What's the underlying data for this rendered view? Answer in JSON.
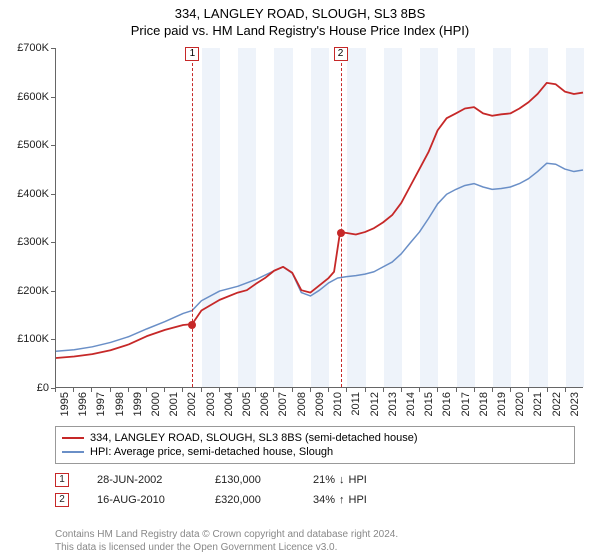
{
  "title_line1": "334, LANGLEY ROAD, SLOUGH, SL3 8BS",
  "title_line2": "Price paid vs. HM Land Registry's House Price Index (HPI)",
  "chart": {
    "type": "line",
    "ylim": [
      0,
      700000
    ],
    "ytick_step": 100000,
    "ytick_labels": [
      "£0",
      "£100K",
      "£200K",
      "£300K",
      "£400K",
      "£500K",
      "£600K",
      "£700K"
    ],
    "x_years": [
      1995,
      1996,
      1997,
      1998,
      1999,
      2000,
      2001,
      2002,
      2003,
      2004,
      2005,
      2006,
      2007,
      2008,
      2009,
      2010,
      2011,
      2012,
      2013,
      2014,
      2015,
      2016,
      2017,
      2018,
      2019,
      2020,
      2021,
      2022,
      2023
    ],
    "background_color": "#ffffff",
    "band_color": "#eef3fa",
    "axis_color": "#666666",
    "markers": [
      {
        "label": "1",
        "year": 2002.49,
        "value": 130000
      },
      {
        "label": "2",
        "year": 2010.63,
        "value": 320000
      }
    ],
    "marker_box_color": "#c62828",
    "series": [
      {
        "name": "334, LANGLEY ROAD, SLOUGH, SL3 8BS (semi-detached house)",
        "color": "#c62828",
        "line_width": 1.8,
        "points": [
          [
            1995,
            60000
          ],
          [
            1996,
            63000
          ],
          [
            1997,
            68000
          ],
          [
            1998,
            76000
          ],
          [
            1999,
            88000
          ],
          [
            2000,
            105000
          ],
          [
            2001,
            118000
          ],
          [
            2002,
            128000
          ],
          [
            2002.49,
            130000
          ],
          [
            2003,
            158000
          ],
          [
            2004,
            180000
          ],
          [
            2005,
            195000
          ],
          [
            2005.5,
            200000
          ],
          [
            2006,
            213000
          ],
          [
            2006.5,
            225000
          ],
          [
            2007,
            240000
          ],
          [
            2007.5,
            248000
          ],
          [
            2008,
            236000
          ],
          [
            2008.5,
            200000
          ],
          [
            2009,
            195000
          ],
          [
            2009.5,
            210000
          ],
          [
            2010,
            225000
          ],
          [
            2010.3,
            238000
          ],
          [
            2010.63,
            320000
          ],
          [
            2011,
            318000
          ],
          [
            2011.5,
            315000
          ],
          [
            2012,
            320000
          ],
          [
            2012.5,
            328000
          ],
          [
            2013,
            340000
          ],
          [
            2013.5,
            355000
          ],
          [
            2014,
            380000
          ],
          [
            2014.5,
            415000
          ],
          [
            2015,
            450000
          ],
          [
            2015.5,
            485000
          ],
          [
            2016,
            530000
          ],
          [
            2016.5,
            555000
          ],
          [
            2017,
            565000
          ],
          [
            2017.5,
            575000
          ],
          [
            2018,
            578000
          ],
          [
            2018.5,
            565000
          ],
          [
            2019,
            560000
          ],
          [
            2019.5,
            563000
          ],
          [
            2020,
            565000
          ],
          [
            2020.5,
            575000
          ],
          [
            2021,
            588000
          ],
          [
            2021.5,
            605000
          ],
          [
            2022,
            628000
          ],
          [
            2022.5,
            625000
          ],
          [
            2023,
            610000
          ],
          [
            2023.5,
            605000
          ],
          [
            2024,
            608000
          ]
        ]
      },
      {
        "name": "HPI: Average price, semi-detached house, Slough",
        "color": "#6a8fc7",
        "line_width": 1.5,
        "points": [
          [
            1995,
            74000
          ],
          [
            1996,
            77000
          ],
          [
            1997,
            83000
          ],
          [
            1998,
            92000
          ],
          [
            1999,
            104000
          ],
          [
            2000,
            120000
          ],
          [
            2001,
            135000
          ],
          [
            2002,
            152000
          ],
          [
            2002.49,
            158000
          ],
          [
            2003,
            178000
          ],
          [
            2004,
            198000
          ],
          [
            2005,
            208000
          ],
          [
            2006,
            222000
          ],
          [
            2007,
            240000
          ],
          [
            2007.5,
            248000
          ],
          [
            2008,
            235000
          ],
          [
            2008.5,
            195000
          ],
          [
            2009,
            188000
          ],
          [
            2009.5,
            200000
          ],
          [
            2010,
            215000
          ],
          [
            2010.5,
            225000
          ],
          [
            2011,
            228000
          ],
          [
            2011.5,
            230000
          ],
          [
            2012,
            233000
          ],
          [
            2012.5,
            238000
          ],
          [
            2013,
            248000
          ],
          [
            2013.5,
            258000
          ],
          [
            2014,
            275000
          ],
          [
            2014.5,
            298000
          ],
          [
            2015,
            320000
          ],
          [
            2015.5,
            348000
          ],
          [
            2016,
            378000
          ],
          [
            2016.5,
            398000
          ],
          [
            2017,
            408000
          ],
          [
            2017.5,
            416000
          ],
          [
            2018,
            420000
          ],
          [
            2018.5,
            413000
          ],
          [
            2019,
            408000
          ],
          [
            2019.5,
            410000
          ],
          [
            2020,
            413000
          ],
          [
            2020.5,
            420000
          ],
          [
            2021,
            430000
          ],
          [
            2021.5,
            445000
          ],
          [
            2022,
            462000
          ],
          [
            2022.5,
            460000
          ],
          [
            2023,
            450000
          ],
          [
            2023.5,
            445000
          ],
          [
            2024,
            448000
          ]
        ]
      }
    ]
  },
  "legend": {
    "items": [
      {
        "label": "334, LANGLEY ROAD, SLOUGH, SL3 8BS (semi-detached house)",
        "color": "#c62828"
      },
      {
        "label": "HPI: Average price, semi-detached house, Slough",
        "color": "#6a8fc7"
      }
    ]
  },
  "sales": [
    {
      "marker": "1",
      "date": "28-JUN-2002",
      "price": "£130,000",
      "delta_pct": "21%",
      "delta_dir": "down",
      "delta_label": "HPI"
    },
    {
      "marker": "2",
      "date": "16-AUG-2010",
      "price": "£320,000",
      "delta_pct": "34%",
      "delta_dir": "up",
      "delta_label": "HPI"
    }
  ],
  "delta_arrow": {
    "up": "↑",
    "down": "↓"
  },
  "attribution": {
    "line1": "Contains HM Land Registry data © Crown copyright and database right 2024.",
    "line2": "This data is licensed under the Open Government Licence v3.0."
  }
}
